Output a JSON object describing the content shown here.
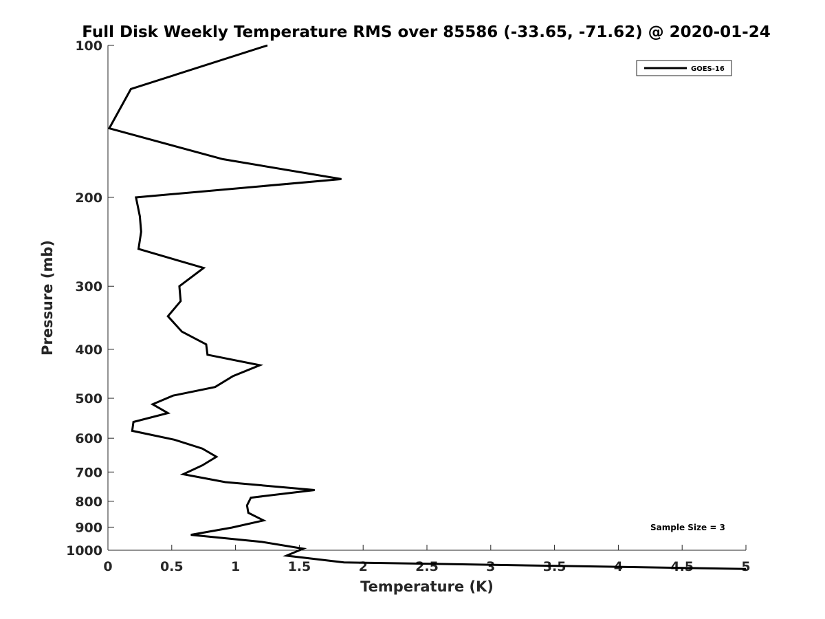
{
  "chart_data": {
    "type": "line",
    "title": "Full Disk Weekly Temperature RMS over 85586 (-33.65, -71.62) @ 2020-01-24",
    "xlabel": "Temperature (K)",
    "ylabel": "Pressure (mb)",
    "xlim": [
      0,
      5
    ],
    "ylim": [
      100,
      1000
    ],
    "y_scale": "log",
    "y_reversed": true,
    "grid": false,
    "xticks": [
      0,
      0.5,
      1,
      1.5,
      2,
      2.5,
      3,
      3.5,
      4,
      4.5,
      5
    ],
    "xtick_labels": [
      "0",
      "0.5",
      "1",
      "1.5",
      "2",
      "2.5",
      "3",
      "3.5",
      "4",
      "4.5",
      "5"
    ],
    "yticks": [
      100,
      200,
      300,
      400,
      500,
      600,
      700,
      800,
      900,
      1000
    ],
    "ytick_labels": [
      "100",
      "200",
      "300",
      "400",
      "500",
      "600",
      "700",
      "800",
      "900",
      "1000"
    ],
    "legend": {
      "position": "top-right",
      "entries": [
        "GOES-16"
      ]
    },
    "annotation": "Sample Size = 3",
    "series": [
      {
        "name": "GOES-16",
        "color": "#000000",
        "x": [
          1.25,
          0.18,
          0.01,
          0.9,
          1.83,
          0.22,
          0.25,
          0.26,
          0.24,
          0.75,
          0.56,
          0.57,
          0.47,
          0.58,
          0.77,
          0.78,
          1.19,
          0.98,
          0.84,
          0.51,
          0.35,
          0.47,
          0.2,
          0.19,
          0.52,
          0.74,
          0.85,
          0.74,
          0.59,
          0.92,
          1.62,
          1.12,
          1.09,
          1.1,
          1.22,
          0.97,
          0.65,
          1.2,
          1.53,
          1.4,
          1.85,
          5.0
        ],
        "y": [
          100,
          122,
          146,
          168,
          184,
          200,
          218,
          234,
          253,
          276,
          300,
          321,
          344,
          369,
          391,
          410,
          430,
          452,
          475,
          494,
          514,
          535,
          557,
          580,
          604,
          629,
          653,
          679,
          707,
          733,
          760,
          787,
          815,
          843,
          873,
          902,
          932,
          962,
          993,
          1025,
          1057,
          1089
        ]
      }
    ]
  }
}
